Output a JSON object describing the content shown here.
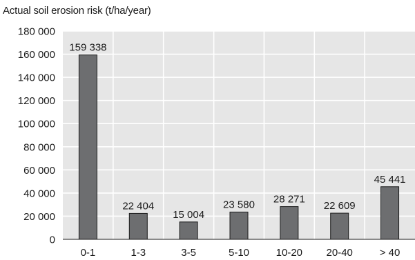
{
  "chart_data": {
    "type": "bar",
    "title": "Actual soil erosion risk (t/ha/year)",
    "xlabel": "",
    "ylabel": "",
    "categories": [
      "0-1",
      "1-3",
      "3-5",
      "5-10",
      "10-20",
      "20-40",
      "> 40"
    ],
    "values": [
      159338,
      22404,
      15004,
      23580,
      28271,
      22609,
      45441
    ],
    "value_labels": [
      "159 338",
      "22 404",
      "15 004",
      "23 580",
      "28 271",
      "22 609",
      "45 441"
    ],
    "ylim": [
      0,
      180000
    ],
    "yticks": [
      0,
      20000,
      40000,
      60000,
      80000,
      100000,
      120000,
      140000,
      160000,
      180000
    ],
    "ytick_labels": [
      "0",
      "20 000",
      "40 000",
      "60 000",
      "80 000",
      "100 000",
      "120 000",
      "140 000",
      "160 000",
      "180 000"
    ],
    "grid": true,
    "legend": "none",
    "colors": {
      "plot_background": "#e6e6e6",
      "gridline": "#ffffff",
      "bar_fill": "#6d6e70",
      "bar_edge": "#1a1a1a",
      "text": "#1a1a1a"
    }
  }
}
